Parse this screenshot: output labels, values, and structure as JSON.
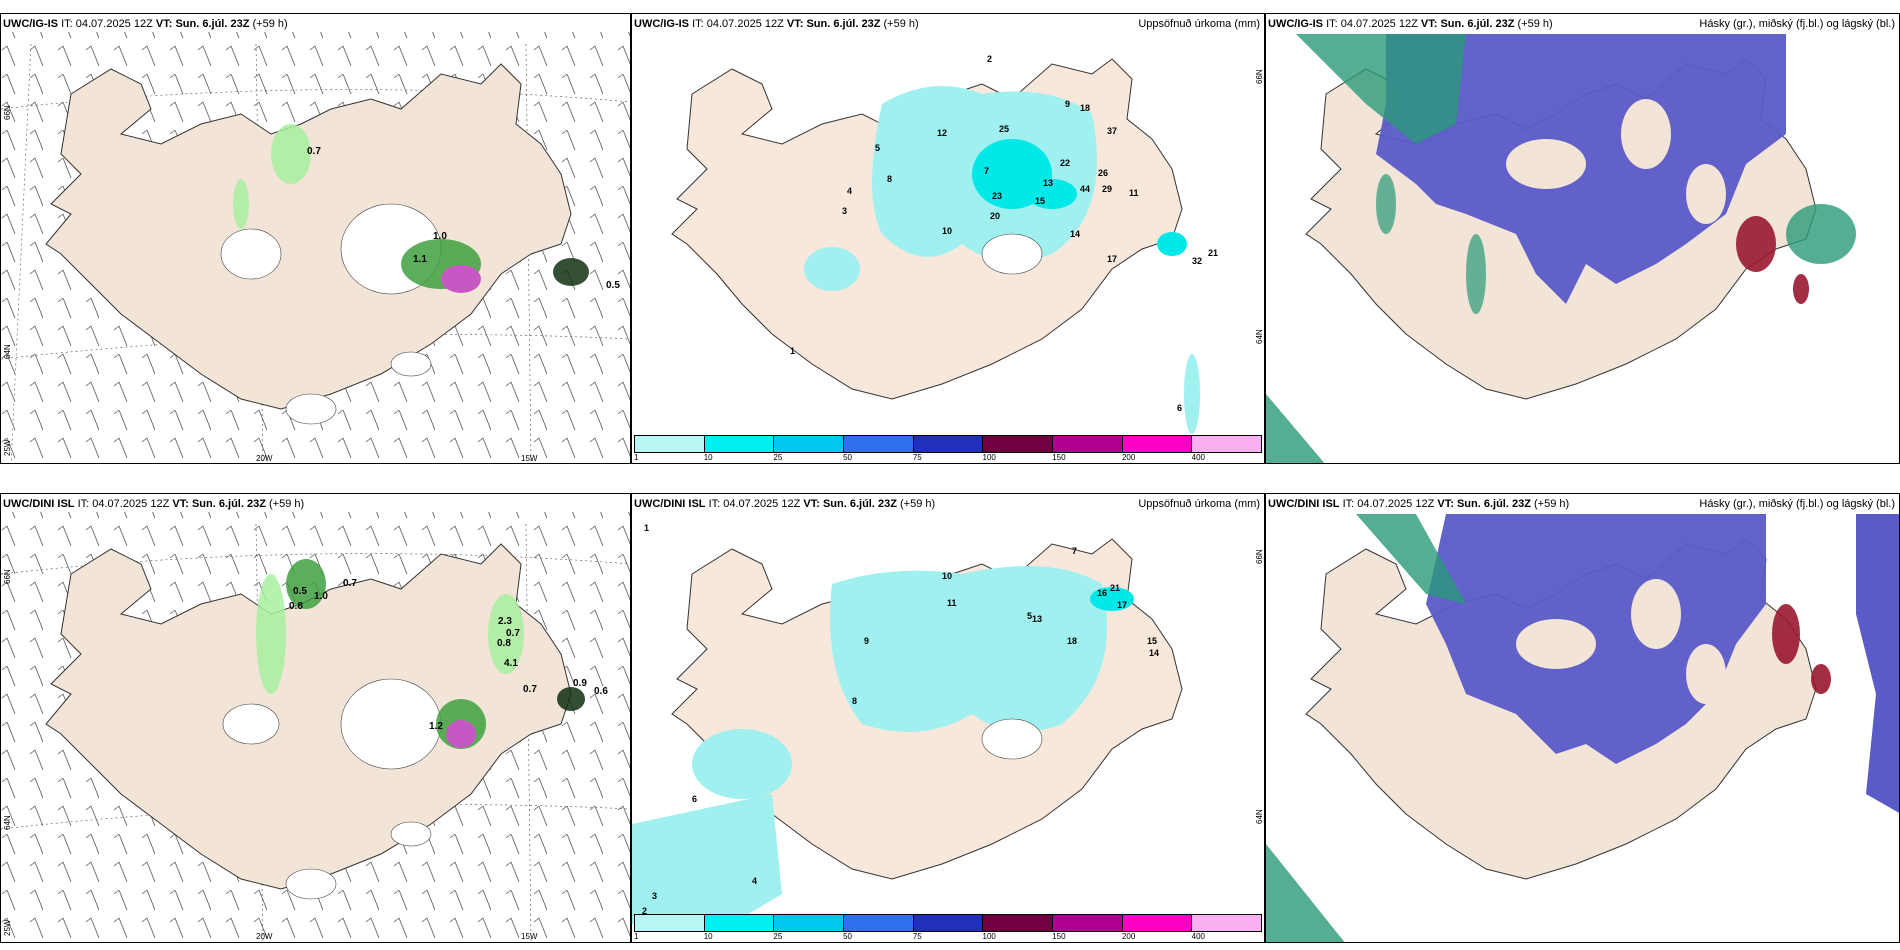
{
  "panels": [
    {
      "model": "UWC/IG-IS",
      "it_label": "IT:",
      "it_value": "04.07.2025 12Z",
      "vt_label": "VT:",
      "vt_value": "Sun. 6.júl. 23Z",
      "lead": "(+59 h)",
      "right": ""
    },
    {
      "model": "UWC/IG-IS",
      "it_label": "IT:",
      "it_value": "04.07.2025 12Z",
      "vt_label": "VT:",
      "vt_value": "Sun. 6.júl. 23Z",
      "lead": "(+59 h)",
      "right": "Uppsöfnuð úrkoma (mm)"
    },
    {
      "model": "UWC/IG-IS",
      "it_label": "IT:",
      "it_value": "04.07.2025 12Z",
      "vt_label": "VT:",
      "vt_value": "Sun. 6.júl. 23Z",
      "lead": "(+59 h)",
      "right": "Hásky (gr.), miðský (fj.bl.) og lágský (bl.)"
    },
    {
      "model": "UWC/DINI ISL",
      "it_label": "IT:",
      "it_value": "04.07.2025 12Z",
      "vt_label": "VT:",
      "vt_value": "Sun. 6.júl. 23Z",
      "lead": "(+59 h)",
      "right": ""
    },
    {
      "model": "UWC/DINI ISL",
      "it_label": "IT:",
      "it_value": "04.07.2025 12Z",
      "vt_label": "VT:",
      "vt_value": "Sun. 6.júl. 23Z",
      "lead": "(+59 h)",
      "right": "Uppsöfnuð úrkoma (mm)"
    },
    {
      "model": "UWC/DINI ISL",
      "it_label": "IT:",
      "it_value": "04.07.2025 12Z",
      "vt_label": "VT:",
      "vt_value": "Sun. 6.júl. 23Z",
      "lead": "(+59 h)",
      "right": "Hásky (gr.), miðský (fj.bl.) og lágský (bl.)"
    }
  ],
  "axis_labels": {
    "lat66": "66N",
    "lat64": "64N",
    "lon25": "25W",
    "lon20": "20W",
    "lon15": "15W"
  },
  "legend": {
    "ticks": [
      "1",
      "10",
      "25",
      "50",
      "75",
      "100",
      "150",
      "200",
      "400"
    ],
    "colors": [
      "#b8f6f6",
      "#00f0f0",
      "#00c8ee",
      "#3070f0",
      "#2030b8",
      "#700040",
      "#b00090",
      "#ff00c8",
      "#f8b0f0"
    ]
  },
  "colors": {
    "land": "#f2e4d6",
    "precip_light": "#a0f0f0",
    "precip_mid": "#00e8e8",
    "cloud_low": "#5a5ac8",
    "cloud_high": "#2a9a78",
    "cloud_mid": "#9a1830",
    "rain_green": "#a8f0a0"
  },
  "labels_top_left": [
    "0.7",
    "1.0",
    "0.5",
    "1.1"
  ],
  "labels_bot_left": [
    "0.5",
    "0.8",
    "1.0",
    "0.7",
    "2.3",
    "0.7",
    "0.8",
    "4.1",
    "0.7",
    "0.9",
    "0.6",
    "1.2"
  ],
  "labels_top_mid": [
    "2",
    "12",
    "25",
    "9",
    "18",
    "37",
    "22",
    "44",
    "29",
    "26",
    "21",
    "32",
    "6",
    "1",
    "17",
    "13",
    "23",
    "20",
    "14",
    "15",
    "11",
    "10",
    "7",
    "4",
    "5",
    "3",
    "8"
  ],
  "labels_bot_mid": [
    "1",
    "2",
    "7",
    "10",
    "11",
    "16",
    "21",
    "17",
    "18",
    "13",
    "15",
    "14",
    "6",
    "3",
    "4",
    "5",
    "8",
    "9"
  ]
}
